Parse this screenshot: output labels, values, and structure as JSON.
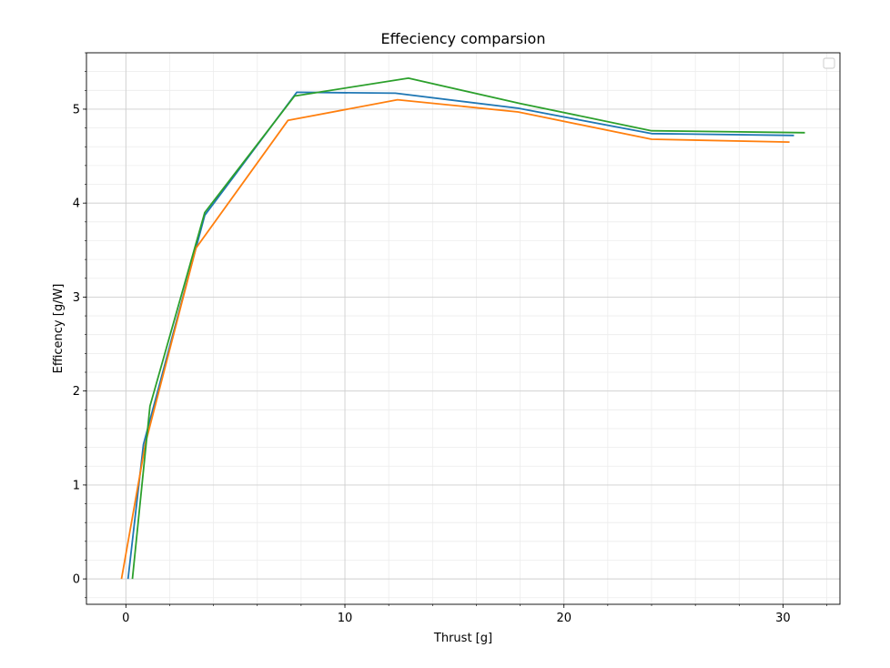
{
  "chart_data": {
    "type": "line",
    "title": "Effeciency comparsion",
    "xlabel": "Thrust [g]",
    "ylabel": "Efficency [g/W]",
    "xlim": [
      -1.8,
      32.6
    ],
    "ylim": [
      -0.27,
      5.6
    ],
    "xticks": [
      0,
      10,
      20,
      30
    ],
    "yticks": [
      0,
      1,
      2,
      3,
      4,
      5
    ],
    "grid": true,
    "minor_grid": true,
    "legend": "top-right",
    "series": [
      {
        "color": "#1f77b4",
        "x": [
          0.1,
          0.8,
          3.6,
          7.8,
          12.3,
          17.9,
          24.0,
          30.5
        ],
        "y": [
          0.0,
          1.43,
          3.87,
          5.18,
          5.17,
          5.01,
          4.74,
          4.72
        ]
      },
      {
        "color": "#ff7f0e",
        "x": [
          -0.2,
          0.9,
          3.2,
          7.4,
          12.4,
          17.9,
          24.0,
          30.3
        ],
        "y": [
          0.0,
          1.45,
          3.52,
          4.88,
          5.1,
          4.97,
          4.68,
          4.65
        ]
      },
      {
        "color": "#2ca02c",
        "x": [
          0.3,
          1.1,
          3.6,
          7.7,
          12.9,
          18.0,
          24.0,
          31.0
        ],
        "y": [
          0.0,
          1.84,
          3.9,
          5.14,
          5.33,
          5.06,
          4.77,
          4.75
        ]
      }
    ]
  }
}
